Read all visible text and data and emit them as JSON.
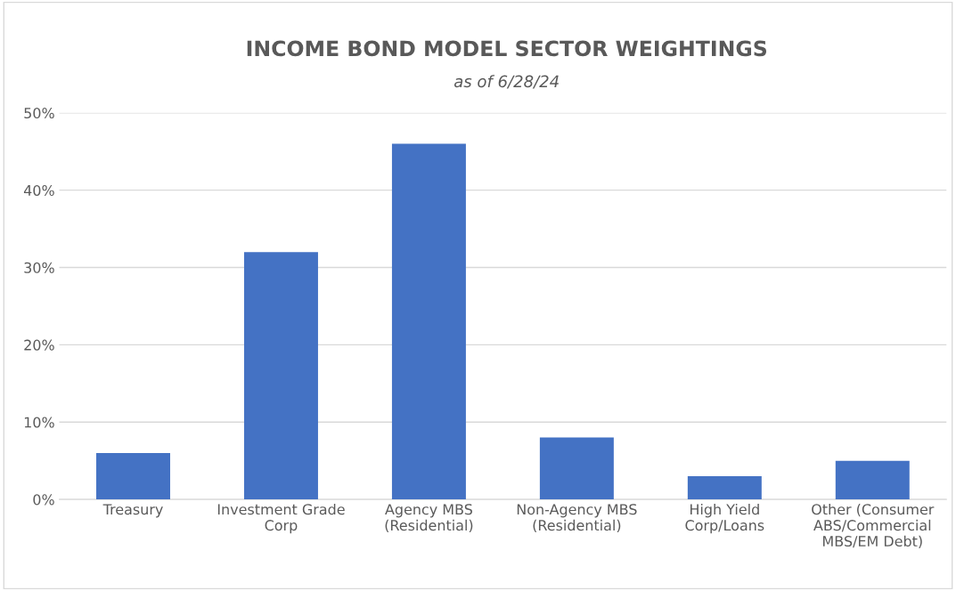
{
  "chart_data": {
    "type": "bar",
    "title": "INCOME BOND MODEL SECTOR WEIGHTINGS",
    "subtitle": "as of 6/28/24",
    "categories": [
      "Treasury",
      "Investment Grade\nCorp",
      "Agency MBS\n(Residential)",
      "Non-Agency MBS\n(Residential)",
      "High Yield\nCorp/Loans",
      "Other (Consumer\nABS/Commercial\nMBS/EM Debt)"
    ],
    "values": [
      6,
      32,
      46,
      8,
      3,
      5
    ],
    "color": "#4472c4",
    "ylim": [
      0,
      50
    ],
    "yticks": [
      {
        "value": 0,
        "label": "0%"
      },
      {
        "value": 10,
        "label": "10%"
      },
      {
        "value": 20,
        "label": "20%"
      },
      {
        "value": 30,
        "label": "30%"
      },
      {
        "value": 40,
        "label": "40%"
      },
      {
        "value": 50,
        "label": "50%"
      }
    ],
    "grid": "y",
    "legend": false
  }
}
